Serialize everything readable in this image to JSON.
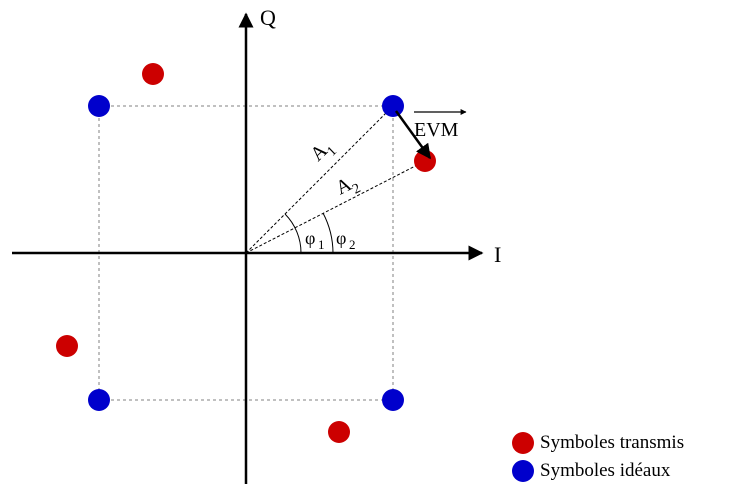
{
  "axes": {
    "i_label": "I",
    "q_label": "Q"
  },
  "vector_labels": {
    "a1": "A",
    "a1_sub": "1",
    "a2": "A",
    "a2_sub": "2",
    "evm": "EVM"
  },
  "angle_labels": {
    "phi1": "φ",
    "phi1_sub": "1",
    "phi2": "φ",
    "phi2_sub": "2"
  },
  "colors": {
    "transmitted": "#cc0000",
    "ideal": "#0000cc",
    "axis": "#000000",
    "guide": "#808080"
  },
  "legend": {
    "transmitted_label": "Symboles transmis",
    "ideal_label": "Symboles idéaux"
  }
}
